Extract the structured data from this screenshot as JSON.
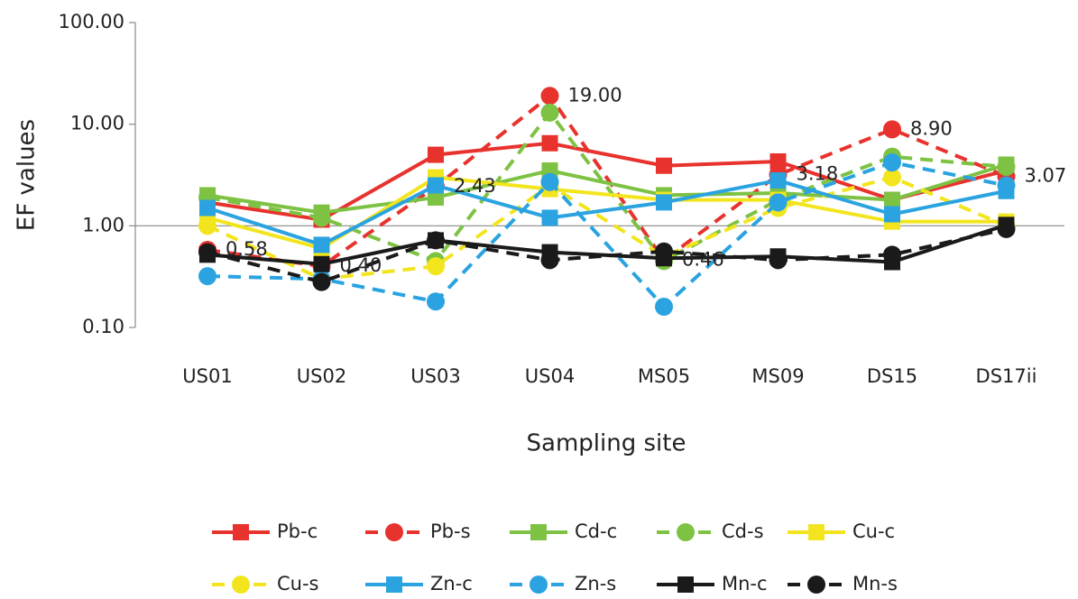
{
  "chart_data": {
    "type": "line",
    "yscale": "log",
    "grid": false,
    "legend": "bottom",
    "x_label": "Sampling site",
    "y_label": "EF values",
    "categories": [
      "US01",
      "US02",
      "US03",
      "US04",
      "MS05",
      "MS09",
      "DS15",
      "DS17ii"
    ],
    "ylim": [
      0.1,
      100
    ],
    "yticks": [
      {
        "value": 0.1,
        "label": "0.10"
      },
      {
        "value": 1,
        "label": "1.00"
      },
      {
        "value": 10,
        "label": "10.00"
      },
      {
        "value": 100,
        "label": "100.00"
      }
    ],
    "series": [
      {
        "name": "Pb-c",
        "color": "#e8322d",
        "dashed": false,
        "marker": "square",
        "values": [
          1.7,
          1.15,
          5.0,
          6.5,
          3.9,
          4.3,
          1.8,
          3.5
        ]
      },
      {
        "name": "Pb-s",
        "color": "#e8322d",
        "dashed": true,
        "marker": "circle",
        "values": [
          0.58,
          0.4,
          2.43,
          19,
          0.46,
          3.18,
          8.9,
          3.07
        ],
        "value_labels": [
          "0.58",
          "0.40",
          "2.43",
          "19.00",
          "0.46",
          "3.18",
          "8.90",
          "3.07"
        ]
      },
      {
        "name": "Cd-c",
        "color": "#7dc243",
        "dashed": false,
        "marker": "square",
        "values": [
          2.0,
          1.35,
          1.9,
          3.5,
          2.0,
          2.1,
          1.8,
          4.0
        ]
      },
      {
        "name": "Cd-s",
        "color": "#7dc243",
        "dashed": true,
        "marker": "circle",
        "values": [
          1.9,
          1.2,
          0.45,
          13,
          0.45,
          1.8,
          4.8,
          3.8
        ]
      },
      {
        "name": "Cu-c",
        "color": "#f2e51e",
        "dashed": false,
        "marker": "square",
        "values": [
          1.2,
          0.6,
          3.0,
          2.3,
          1.8,
          1.8,
          1.1,
          1.1
        ]
      },
      {
        "name": "Cu-s",
        "color": "#f2e51e",
        "dashed": true,
        "marker": "circle",
        "values": [
          1.0,
          0.3,
          0.4,
          2.5,
          0.5,
          1.5,
          3.0,
          1.0
        ]
      },
      {
        "name": "Zn-c",
        "color": "#2aa3e0",
        "dashed": false,
        "marker": "square",
        "values": [
          1.5,
          0.65,
          2.5,
          1.2,
          1.7,
          2.8,
          1.3,
          2.2
        ]
      },
      {
        "name": "Zn-s",
        "color": "#2aa3e0",
        "dashed": true,
        "marker": "circle",
        "values": [
          0.32,
          0.3,
          0.18,
          2.7,
          0.16,
          1.7,
          4.2,
          2.5
        ]
      },
      {
        "name": "Mn-c",
        "color": "#1a1a1a",
        "dashed": false,
        "marker": "square",
        "values": [
          0.52,
          0.42,
          0.72,
          0.55,
          0.48,
          0.5,
          0.44,
          1.02
        ]
      },
      {
        "name": "Mn-s",
        "color": "#1a1a1a",
        "dashed": true,
        "marker": "circle",
        "values": [
          0.55,
          0.28,
          0.72,
          0.46,
          0.56,
          0.46,
          0.52,
          0.93
        ]
      }
    ]
  }
}
